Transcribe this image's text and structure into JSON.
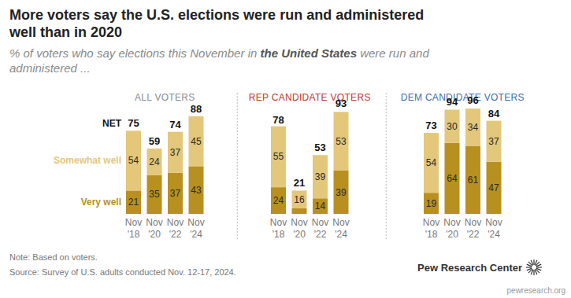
{
  "header": {
    "title": [
      "More voters say the U.S. elections were run and administered",
      "well than in 2020"
    ],
    "subtitle": {
      "before": "% of voters who say elections this November in ",
      "bold": "the United States",
      "after": " were run and administered ..."
    }
  },
  "chart_data": [
    {
      "type": "bar",
      "stacked": true,
      "data_labels": true,
      "tick_labels": "x",
      "legend": "left",
      "title": "ALL VOTERS",
      "color": "#8c8c8c",
      "categories": [
        "Nov '18",
        "Nov '20",
        "Nov '22",
        "Nov '24"
      ],
      "ylim": [
        0,
        100
      ],
      "series": [
        {
          "name": "Very well",
          "color": "#b8901f",
          "values": [
            21,
            35,
            37,
            43
          ]
        },
        {
          "name": "Somewhat well",
          "color": "#e3c77a",
          "values": [
            54,
            24,
            37,
            45
          ]
        }
      ],
      "net": {
        "name": "NET",
        "values": [
          75,
          59,
          74,
          88
        ]
      }
    },
    {
      "type": "bar",
      "stacked": true,
      "data_labels": true,
      "tick_labels": "x",
      "title": "REP CANDIDATE VOTERS",
      "color": "#c0392b",
      "categories": [
        "Nov '18",
        "Nov '20",
        "Nov '22",
        "Nov '24"
      ],
      "ylim": [
        0,
        100
      ],
      "series": [
        {
          "name": "Very well",
          "color": "#b8901f",
          "values": [
            24,
            5,
            14,
            39
          ],
          "value_labels": [
            "24",
            null,
            "14",
            "39"
          ]
        },
        {
          "name": "Somewhat well",
          "color": "#e3c77a",
          "values": [
            55,
            16,
            39,
            53
          ]
        }
      ],
      "net": {
        "values": [
          78,
          21,
          53,
          93
        ]
      }
    },
    {
      "type": "bar",
      "stacked": true,
      "data_labels": true,
      "tick_labels": "x",
      "title": "DEM CANDIDATE VOTERS",
      "color": "#3d6fa6",
      "categories": [
        "Nov '18",
        "Nov '20",
        "Nov '22",
        "Nov '24"
      ],
      "ylim": [
        0,
        100
      ],
      "series": [
        {
          "name": "Very well",
          "color": "#b8901f",
          "values": [
            19,
            64,
            61,
            47
          ]
        },
        {
          "name": "Somewhat well",
          "color": "#e3c77a",
          "values": [
            54,
            30,
            34,
            37
          ]
        }
      ],
      "net": {
        "values": [
          73,
          94,
          96,
          84
        ]
      }
    }
  ],
  "footer": {
    "note": "Note: Based on voters.",
    "source": "Source: Survey of U.S. adults conducted Nov. 12-17, 2024.",
    "credit": "Pew Research Center",
    "url": "pewresearch.org"
  }
}
